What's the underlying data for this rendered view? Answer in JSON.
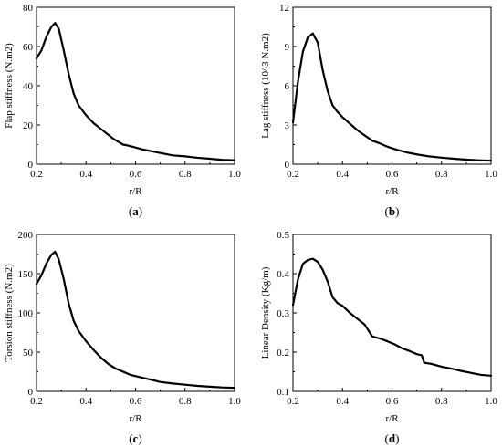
{
  "chart_data": [
    {
      "type": "line",
      "panel_label": "a",
      "xlabel": "r/R",
      "ylabel": "Flap stiffness (N.m2)",
      "xlim": [
        0.2,
        1.0
      ],
      "ylim": [
        0,
        80
      ],
      "xticks": [
        "0.2",
        "0.4",
        "0.6",
        "0.8",
        "1.0"
      ],
      "yticks": [
        "0",
        "20",
        "40",
        "60",
        "80"
      ],
      "x": [
        0.2,
        0.22,
        0.24,
        0.26,
        0.275,
        0.29,
        0.31,
        0.33,
        0.35,
        0.37,
        0.4,
        0.43,
        0.46,
        0.49,
        0.51,
        0.53,
        0.55,
        0.57,
        0.6,
        0.63,
        0.67,
        0.71,
        0.75,
        0.8,
        0.85,
        0.9,
        0.95,
        1.0
      ],
      "y": [
        54,
        58,
        65,
        70,
        72,
        69,
        58,
        46,
        36,
        30,
        25,
        21,
        18,
        15,
        13,
        11.5,
        10,
        9.5,
        8.5,
        7.5,
        6.5,
        5.5,
        4.5,
        4,
        3.3,
        2.8,
        2.2,
        2.0
      ]
    },
    {
      "type": "line",
      "panel_label": "b",
      "xlabel": "r/R",
      "ylabel": "Lag stiffness (10^3 N.m2)",
      "xlim": [
        0.2,
        1.0
      ],
      "ylim": [
        0,
        12
      ],
      "xticks": [
        "0.2",
        "0.4",
        "0.6",
        "0.8",
        "1.0"
      ],
      "yticks": [
        "0",
        "3",
        "6",
        "9",
        "12"
      ],
      "x": [
        0.2,
        0.22,
        0.24,
        0.26,
        0.28,
        0.3,
        0.32,
        0.34,
        0.36,
        0.38,
        0.4,
        0.43,
        0.46,
        0.49,
        0.52,
        0.55,
        0.58,
        0.62,
        0.66,
        0.7,
        0.75,
        0.8,
        0.85,
        0.9,
        0.95,
        1.0
      ],
      "y": [
        3.2,
        6.3,
        8.6,
        9.7,
        10.0,
        9.3,
        7.2,
        5.6,
        4.5,
        4.0,
        3.6,
        3.1,
        2.6,
        2.2,
        1.8,
        1.6,
        1.35,
        1.1,
        0.9,
        0.75,
        0.6,
        0.5,
        0.42,
        0.35,
        0.3,
        0.27
      ]
    },
    {
      "type": "line",
      "panel_label": "c",
      "xlabel": "r/R",
      "ylabel": "Torsion stiffness (N.m2)",
      "xlim": [
        0.2,
        1.0
      ],
      "ylim": [
        0,
        200
      ],
      "xticks": [
        "0.2",
        "0.4",
        "0.6",
        "0.8",
        "1.0"
      ],
      "yticks": [
        "0",
        "50",
        "100",
        "150",
        "200"
      ],
      "x": [
        0.2,
        0.22,
        0.24,
        0.26,
        0.275,
        0.29,
        0.31,
        0.33,
        0.35,
        0.37,
        0.4,
        0.43,
        0.46,
        0.49,
        0.52,
        0.55,
        0.58,
        0.62,
        0.66,
        0.7,
        0.75,
        0.8,
        0.85,
        0.9,
        0.95,
        1.0
      ],
      "y": [
        137,
        148,
        163,
        174,
        178,
        168,
        143,
        112,
        90,
        77,
        64,
        53,
        43,
        35,
        29,
        25,
        21,
        18,
        15,
        12,
        10,
        8.5,
        7,
        6,
        5,
        4.5
      ]
    },
    {
      "type": "line",
      "panel_label": "d",
      "xlabel": "r/R",
      "ylabel": "Linear Density (Kg/m)",
      "xlim": [
        0.2,
        1.0
      ],
      "ylim": [
        0.1,
        0.5
      ],
      "xticks": [
        "0.2",
        "0.4",
        "0.6",
        "0.8",
        "1.0"
      ],
      "yticks": [
        "0.1",
        "0.2",
        "0.3",
        "0.4",
        "0.5"
      ],
      "x": [
        0.2,
        0.22,
        0.24,
        0.26,
        0.28,
        0.3,
        0.32,
        0.34,
        0.36,
        0.38,
        0.4,
        0.43,
        0.46,
        0.49,
        0.52,
        0.55,
        0.58,
        0.61,
        0.64,
        0.67,
        0.7,
        0.72,
        0.73,
        0.76,
        0.8,
        0.84,
        0.88,
        0.92,
        0.96,
        1.0
      ],
      "y": [
        0.32,
        0.385,
        0.425,
        0.435,
        0.438,
        0.43,
        0.41,
        0.38,
        0.34,
        0.325,
        0.318,
        0.3,
        0.285,
        0.27,
        0.24,
        0.235,
        0.228,
        0.22,
        0.21,
        0.203,
        0.195,
        0.192,
        0.173,
        0.17,
        0.163,
        0.158,
        0.152,
        0.147,
        0.142,
        0.14
      ]
    }
  ]
}
